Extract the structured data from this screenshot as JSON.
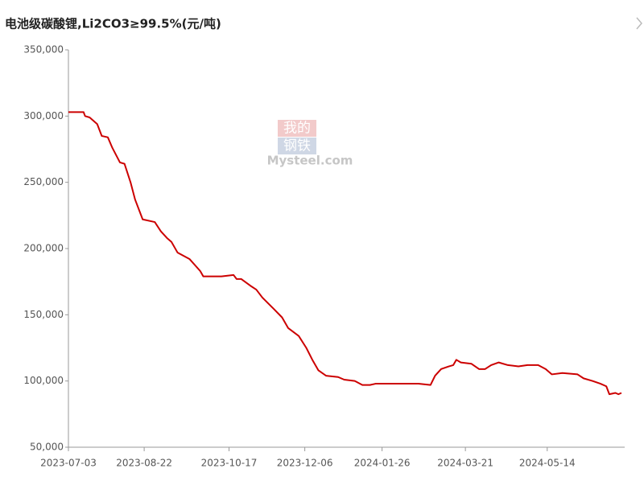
{
  "chart_data": {
    "type": "line",
    "title": "电池级碳酸锂,Li2CO3≥99.5%(元/吨)",
    "watermark": [
      "我的",
      "钢铁",
      "Mysteel.com"
    ],
    "x": [
      "2023-07-03",
      "2023-07-13",
      "2023-07-14",
      "2023-07-17",
      "2023-07-22",
      "2023-07-25",
      "2023-07-29",
      "2023-08-01",
      "2023-08-06",
      "2023-08-09",
      "2023-08-13",
      "2023-08-16",
      "2023-08-21",
      "2023-08-29",
      "2023-09-02",
      "2023-09-06",
      "2023-09-09",
      "2023-09-13",
      "2023-09-21",
      "2023-09-28",
      "2023-09-30",
      "2023-10-12",
      "2023-10-20",
      "2023-10-22",
      "2023-10-25",
      "2023-10-31",
      "2023-11-04",
      "2023-11-08",
      "2023-11-15",
      "2023-11-21",
      "2023-11-25",
      "2023-12-02",
      "2023-12-07",
      "2023-12-11",
      "2023-12-15",
      "2023-12-20",
      "2023-12-28",
      "2024-01-01",
      "2024-01-08",
      "2024-01-13",
      "2024-01-18",
      "2024-01-22",
      "2024-02-03",
      "2024-02-19",
      "2024-02-27",
      "2024-03-01",
      "2024-03-05",
      "2024-03-10",
      "2024-03-13",
      "2024-03-15",
      "2024-03-18",
      "2024-03-25",
      "2024-03-30",
      "2024-04-03",
      "2024-04-07",
      "2024-04-12",
      "2024-04-18",
      "2024-04-25",
      "2024-05-01",
      "2024-05-08",
      "2024-05-13",
      "2024-05-17",
      "2024-05-24",
      "2024-06-03",
      "2024-06-07",
      "2024-06-13",
      "2024-06-18",
      "2024-06-22",
      "2024-06-24",
      "2024-06-28",
      "2024-06-30",
      "2024-07-02"
    ],
    "series": [
      {
        "color": "#cc0000",
        "values": [
          303000,
          303000,
          300000,
          299000,
          294000,
          285000,
          284000,
          276000,
          265000,
          264000,
          250000,
          237000,
          222000,
          220000,
          213000,
          208000,
          205000,
          197000,
          192000,
          183000,
          179000,
          179000,
          180000,
          177000,
          177000,
          172000,
          169000,
          163000,
          155000,
          148000,
          140000,
          134000,
          125000,
          116000,
          108000,
          104000,
          103000,
          101000,
          100000,
          97000,
          97000,
          98000,
          98000,
          98000,
          97000,
          104000,
          109000,
          111000,
          112000,
          116000,
          114000,
          113000,
          109000,
          109000,
          112000,
          114000,
          112000,
          111000,
          112000,
          112000,
          109000,
          105000,
          106000,
          105000,
          102000,
          100000,
          98000,
          96000,
          90000,
          91000,
          90000,
          91000
        ]
      }
    ],
    "xlim": [
      "2023-07-03",
      "2024-07-02"
    ],
    "xticks": [
      "2023-07-03",
      "2023-08-22",
      "2023-10-17",
      "2023-12-06",
      "2024-01-26",
      "2024-03-21",
      "2024-05-14"
    ],
    "ylim": [
      50000,
      350000
    ],
    "yticks": [
      {
        "value": 50000,
        "label": "50,000"
      },
      {
        "value": 100000,
        "label": "100,000"
      },
      {
        "value": 150000,
        "label": "150,000"
      },
      {
        "value": 200000,
        "label": "200,000"
      },
      {
        "value": 250000,
        "label": "250,000"
      },
      {
        "value": 300000,
        "label": "300,000"
      },
      {
        "value": 350000,
        "label": "350,000"
      }
    ],
    "grid": false
  }
}
